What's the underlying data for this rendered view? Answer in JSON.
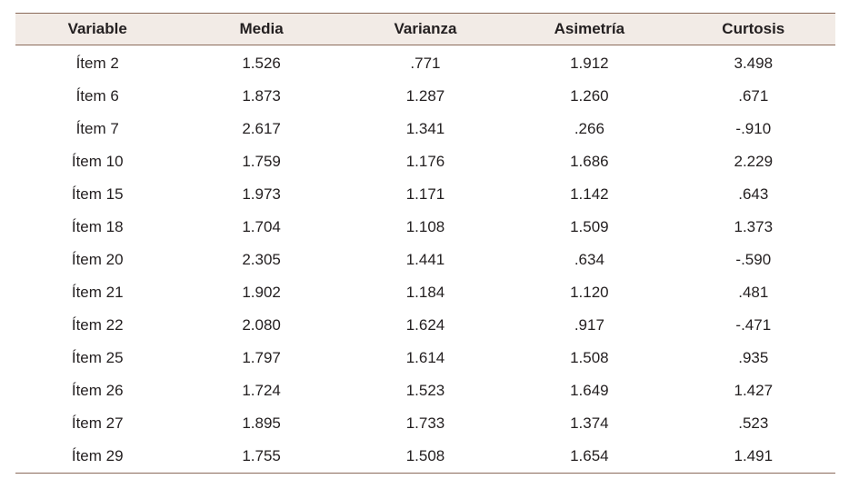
{
  "table": {
    "columns": [
      "Variable",
      "Media",
      "Varianza",
      "Asimetría",
      "Curtosis"
    ],
    "rows": [
      [
        "Ítem 2",
        "1.526",
        ".771",
        "1.912",
        "3.498"
      ],
      [
        "Ítem 6",
        "1.873",
        "1.287",
        "1.260",
        ".671"
      ],
      [
        "Ítem 7",
        "2.617",
        "1.341",
        ".266",
        "-.910"
      ],
      [
        "Ítem 10",
        "1.759",
        "1.176",
        "1.686",
        "2.229"
      ],
      [
        "Ítem 15",
        "1.973",
        "1.171",
        "1.142",
        ".643"
      ],
      [
        "Ítem 18",
        "1.704",
        "1.108",
        "1.509",
        "1.373"
      ],
      [
        "Ítem 20",
        "2.305",
        "1.441",
        ".634",
        "-.590"
      ],
      [
        "Ítem 21",
        "1.902",
        "1.184",
        "1.120",
        ".481"
      ],
      [
        "Ítem 22",
        "2.080",
        "1.624",
        ".917",
        "-.471"
      ],
      [
        "Ítem 25",
        "1.797",
        "1.614",
        "1.508",
        ".935"
      ],
      [
        "Ítem 26",
        "1.724",
        "1.523",
        "1.649",
        "1.427"
      ],
      [
        "Ítem 27",
        "1.895",
        "1.733",
        "1.374",
        ".523"
      ],
      [
        "Ítem 29",
        "1.755",
        "1.508",
        "1.654",
        "1.491"
      ]
    ]
  }
}
